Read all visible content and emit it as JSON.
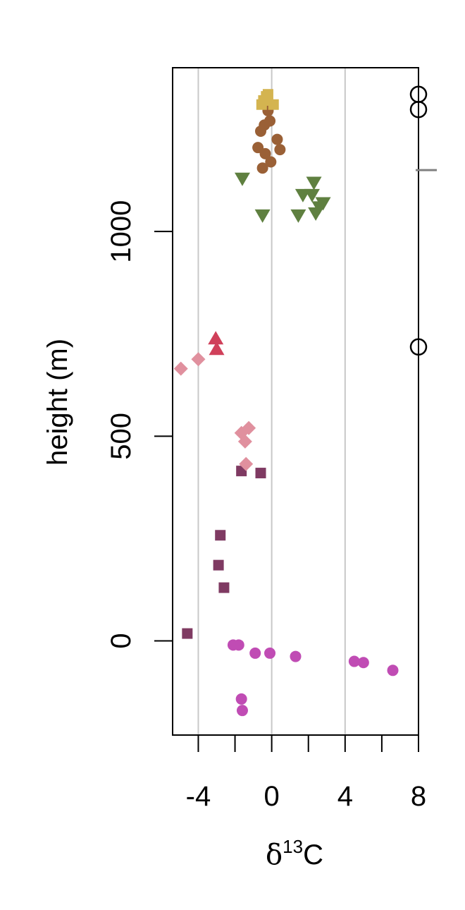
{
  "chart_data": {
    "type": "scatter",
    "title": "",
    "xlabel": "δ13C",
    "xlabel_main": "δ",
    "xlabel_sup": "13",
    "xlabel_tail": "C",
    "ylabel": "height (m)",
    "xlim": [
      -5.4,
      8
    ],
    "ylim": [
      -230,
      1400
    ],
    "x_ticks": [
      -4,
      -2,
      0,
      2,
      4,
      6,
      8
    ],
    "x_tick_labels": [
      {
        "value": -4,
        "label": "-4"
      },
      {
        "value": 0,
        "label": "0"
      },
      {
        "value": 4,
        "label": "4"
      },
      {
        "value": 8,
        "label": "8"
      }
    ],
    "y_ticks": [
      0,
      500,
      1000
    ],
    "y_tick_labels": [
      {
        "value": 0,
        "label": "0"
      },
      {
        "value": 500,
        "label": "500"
      },
      {
        "value": 1000,
        "label": "1000"
      }
    ],
    "vertical_gridlines": [
      -4,
      0,
      4
    ],
    "grid_color": "#c8c8c8",
    "right_axis_marker": {
      "y": 1150,
      "color": "#808080"
    },
    "series": [
      {
        "marker": "circle",
        "color": "#c04cb4",
        "points": [
          [
            -2.1,
            -10
          ],
          [
            -1.8,
            -10
          ],
          [
            -0.9,
            -30
          ],
          [
            -0.1,
            -30
          ],
          [
            1.3,
            -38
          ],
          [
            4.5,
            -50
          ],
          [
            5.0,
            -53
          ],
          [
            6.6,
            -72
          ],
          [
            -1.65,
            -142
          ],
          [
            -1.6,
            -170
          ]
        ]
      },
      {
        "marker": "square",
        "color": "#7f3a62",
        "points": [
          [
            -4.6,
            18
          ],
          [
            -2.6,
            130
          ],
          [
            -2.9,
            185
          ],
          [
            -2.8,
            258
          ],
          [
            -1.65,
            415
          ],
          [
            -0.6,
            410
          ]
        ]
      },
      {
        "marker": "diamond",
        "color": "#e0909e",
        "points": [
          [
            -1.4,
            432
          ],
          [
            -1.45,
            487
          ],
          [
            -1.65,
            508
          ],
          [
            -1.25,
            520
          ],
          [
            -4.95,
            665
          ],
          [
            -4.0,
            688
          ]
        ]
      },
      {
        "marker": "triangle-up",
        "color": "#d0405a",
        "points": [
          [
            -3.0,
            712
          ],
          [
            -3.05,
            738
          ]
        ]
      },
      {
        "marker": "triangle-down",
        "color": "#5f8040",
        "points": [
          [
            -1.6,
            1130
          ],
          [
            1.7,
            1090
          ],
          [
            2.2,
            1090
          ],
          [
            2.3,
            1120
          ],
          [
            2.6,
            1060
          ],
          [
            2.8,
            1070
          ],
          [
            2.4,
            1045
          ],
          [
            1.45,
            1040
          ],
          [
            -0.5,
            1040
          ]
        ]
      },
      {
        "marker": "circle",
        "color": "#9a6036",
        "points": [
          [
            -0.5,
            1155
          ],
          [
            -0.05,
            1170
          ],
          [
            -0.35,
            1190
          ],
          [
            -0.75,
            1205
          ],
          [
            0.45,
            1200
          ],
          [
            0.3,
            1225
          ],
          [
            -0.6,
            1245
          ],
          [
            -0.4,
            1260
          ],
          [
            -0.1,
            1270
          ],
          [
            -0.2,
            1295
          ]
        ]
      },
      {
        "marker": "square",
        "color": "#d4b450",
        "points": [
          [
            -0.3,
            1330
          ],
          [
            0.1,
            1310
          ],
          [
            -0.55,
            1310
          ],
          [
            -0.2,
            1335
          ],
          [
            -0.45,
            1320
          ]
        ]
      },
      {
        "marker": "open-circle",
        "color": "#000000",
        "points": [
          [
            8,
            1335
          ],
          [
            8,
            1298
          ],
          [
            8,
            718
          ]
        ]
      }
    ]
  }
}
